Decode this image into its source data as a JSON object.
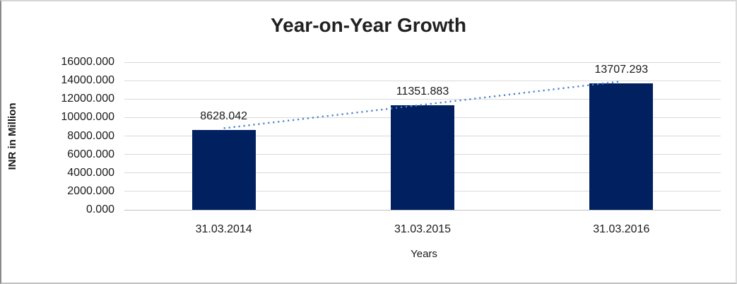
{
  "chart_data": {
    "type": "bar",
    "title": "Year-on-Year Growth",
    "xlabel": "Years",
    "ylabel": "INR in Million",
    "categories": [
      "31.03.2014",
      "31.03.2015",
      "31.03.2016"
    ],
    "values": [
      8628.042,
      11351.883,
      13707.293
    ],
    "value_labels": [
      "8628.042",
      "11351.883",
      "13707.293"
    ],
    "ylim": [
      0,
      16000
    ],
    "ytick_step": 2000,
    "ytick_labels": [
      "0.000",
      "2000.000",
      "4000.000",
      "6000.000",
      "8000.000",
      "10000.000",
      "12000.000",
      "14000.000",
      "16000.000"
    ],
    "grid": "horizontal-only",
    "legend": "none",
    "bar_color": "#002060",
    "trendline": {
      "type": "linear",
      "style": "dotted",
      "color": "#4b81c8"
    }
  },
  "styles": {
    "gridline_color": "#d9d9d9",
    "baseline_color": "#bfbfbf",
    "text_color": "#1a1a1a",
    "title_color": "#212121",
    "background": "#ffffff"
  }
}
